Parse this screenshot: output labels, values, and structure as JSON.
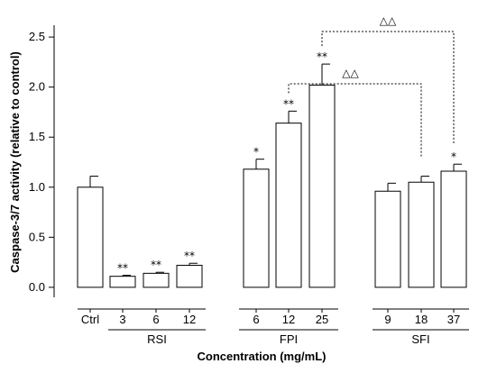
{
  "chart_data": {
    "type": "bar",
    "xlabel": "Concentration (mg/mL)",
    "ylabel": "Caspase-3/7 activity (relative to control)",
    "ylim": [
      -0.1,
      2.6
    ],
    "yticks": [
      0.0,
      0.5,
      1.0,
      1.5,
      2.0,
      2.5
    ],
    "ytick_labels": [
      "0.0",
      "0.5",
      "1.0",
      "1.5",
      "2.0",
      "2.5"
    ],
    "grid": false,
    "groups": [
      {
        "name": "",
        "bars": [
          {
            "label": "Ctrl",
            "value": 1.0,
            "error": 0.11,
            "sig": ""
          }
        ]
      },
      {
        "name": "RSI",
        "bars": [
          {
            "label": "3",
            "value": 0.11,
            "error": 0.01,
            "sig": "**"
          },
          {
            "label": "6",
            "value": 0.14,
            "error": 0.01,
            "sig": "**"
          },
          {
            "label": "12",
            "value": 0.22,
            "error": 0.02,
            "sig": "**"
          }
        ]
      },
      {
        "name": "FPI",
        "bars": [
          {
            "label": "6",
            "value": 1.18,
            "error": 0.1,
            "sig": "*"
          },
          {
            "label": "12",
            "value": 1.64,
            "error": 0.12,
            "sig": "**"
          },
          {
            "label": "25",
            "value": 2.02,
            "error": 0.21,
            "sig": "**"
          }
        ]
      },
      {
        "name": "SFI",
        "bars": [
          {
            "label": "9",
            "value": 0.96,
            "error": 0.08,
            "sig": ""
          },
          {
            "label": "18",
            "value": 1.05,
            "error": 0.06,
            "sig": ""
          },
          {
            "label": "37",
            "value": 1.16,
            "error": 0.07,
            "sig": "*"
          }
        ]
      }
    ],
    "comparisons": [
      {
        "label": "△△",
        "from": "FPI 25",
        "to": "SFI 37"
      },
      {
        "label": "△△",
        "from": "FPI 12",
        "to": "SFI 18"
      }
    ]
  }
}
